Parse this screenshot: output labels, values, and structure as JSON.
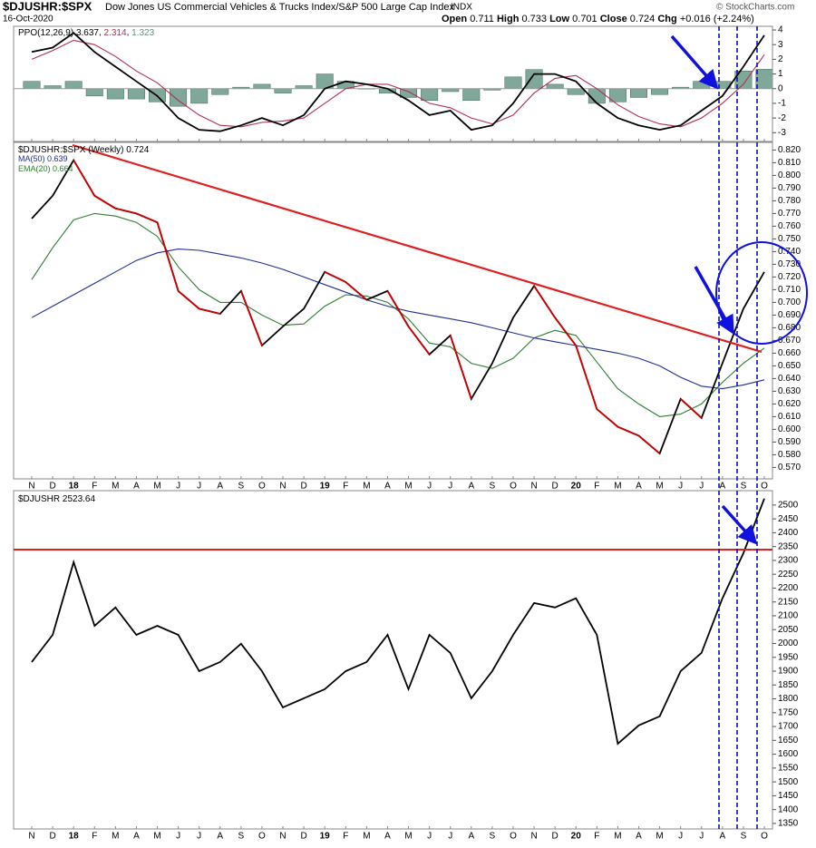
{
  "header": {
    "symbol": "$DJUSHR:$SPX",
    "description": "Dow Jones US Commercial Vehicles & Trucks Index/S&P 500 Large Cap Index",
    "exchange": "INDX",
    "date": "16-Oct-2020",
    "copyright": "© StockCharts.com",
    "open_label": "Open",
    "open": 0.711,
    "high_label": "High",
    "high": 0.733,
    "low_label": "Low",
    "low": 0.701,
    "close_label": "Close",
    "chg_label": "Chg",
    "chg": "+0.016 (+2.24%)"
  },
  "chart_data": [
    {
      "type": "line",
      "title": "PPO(12,26,9)",
      "series": [
        {
          "name": "PPO",
          "color": "#000000",
          "style": "line",
          "values": [
            2.5,
            2.8,
            3.8,
            2.5,
            1.5,
            0.5,
            -0.5,
            -2.0,
            -2.8,
            -2.9,
            -2.5,
            -2.0,
            -2.5,
            -1.8,
            0.0,
            0.5,
            0.3,
            0.0,
            -0.8,
            -1.8,
            -1.5,
            -2.8,
            -2.5,
            -1.0,
            1.0,
            1.0,
            0.5,
            -1.0,
            -2.0,
            -2.5,
            -2.8,
            -2.5,
            -1.5,
            -0.5,
            1.5,
            3.637
          ]
        },
        {
          "name": "Signal",
          "color": "#b03050",
          "style": "line",
          "values": [
            2.0,
            2.6,
            3.3,
            3.0,
            2.2,
            1.2,
            0.4,
            -0.8,
            -1.8,
            -2.5,
            -2.6,
            -2.3,
            -2.2,
            -2.0,
            -1.0,
            0.0,
            0.3,
            0.3,
            -0.2,
            -1.0,
            -1.3,
            -2.0,
            -2.4,
            -1.8,
            -0.3,
            0.7,
            0.9,
            0.0,
            -1.1,
            -1.9,
            -2.4,
            -2.6,
            -2.0,
            -1.0,
            0.3,
            2.314
          ]
        },
        {
          "name": "Histogram",
          "color": "#7fa89a",
          "style": "histogram",
          "values": [
            0.5,
            0.2,
            0.5,
            -0.5,
            -0.7,
            -0.7,
            -0.9,
            -1.2,
            -1.0,
            -0.4,
            0.1,
            0.3,
            -0.3,
            0.2,
            1.0,
            0.5,
            0,
            -0.3,
            -0.6,
            -0.8,
            -0.2,
            -0.8,
            -0.1,
            0.8,
            1.3,
            0.3,
            -0.4,
            -1.0,
            -0.9,
            -0.6,
            -0.4,
            0.1,
            0.5,
            0.5,
            1.2,
            1.323
          ]
        }
      ],
      "ylim": [
        -3.6,
        4.25
      ],
      "yticks": [
        -3,
        -2,
        -1,
        0,
        1,
        2,
        3,
        4
      ]
    },
    {
      "type": "line",
      "categories": [
        "N",
        "D",
        "18",
        "F",
        "M",
        "A",
        "M",
        "J",
        "J",
        "A",
        "S",
        "O",
        "N",
        "D",
        "19",
        "F",
        "M",
        "A",
        "M",
        "J",
        "J",
        "A",
        "S",
        "O",
        "N",
        "D",
        "20",
        "F",
        "M",
        "A",
        "M",
        "J",
        "J",
        "A",
        "S",
        "O"
      ],
      "series": [
        {
          "name": "$DJUSHR:$SPX (Weekly)",
          "color": "#000000",
          "down_color": "#d00000",
          "values": [
            0.766,
            0.784,
            0.812,
            0.784,
            0.774,
            0.77,
            0.763,
            0.709,
            0.695,
            0.691,
            0.709,
            0.666,
            0.681,
            0.695,
            0.724,
            0.716,
            0.702,
            0.709,
            0.681,
            0.659,
            0.674,
            0.624,
            0.652,
            0.688,
            0.713,
            0.688,
            0.666,
            0.616,
            0.602,
            0.595,
            0.581,
            0.624,
            0.609,
            0.652,
            0.695,
            0.724
          ]
        },
        {
          "name": "MA(50)",
          "color": "#1f2f8f",
          "values": [
            0.688,
            0.697,
            0.706,
            0.715,
            0.724,
            0.733,
            0.739,
            0.742,
            0.741,
            0.738,
            0.735,
            0.731,
            0.726,
            0.72,
            0.714,
            0.708,
            0.702,
            0.697,
            0.693,
            0.69,
            0.687,
            0.684,
            0.68,
            0.676,
            0.672,
            0.669,
            0.666,
            0.663,
            0.66,
            0.656,
            0.65,
            0.641,
            0.634,
            0.632,
            0.635,
            0.639
          ]
        },
        {
          "name": "EMA(20)",
          "color": "#2e7d32",
          "values": [
            0.718,
            0.743,
            0.765,
            0.77,
            0.768,
            0.763,
            0.752,
            0.728,
            0.71,
            0.7,
            0.7,
            0.69,
            0.682,
            0.683,
            0.697,
            0.706,
            0.705,
            0.7,
            0.687,
            0.668,
            0.665,
            0.652,
            0.648,
            0.656,
            0.672,
            0.678,
            0.674,
            0.653,
            0.632,
            0.62,
            0.61,
            0.612,
            0.62,
            0.637,
            0.652,
            0.664
          ]
        }
      ],
      "ylim": [
        0.561,
        0.826
      ],
      "yticks": [
        {
          "value": 0.57,
          "label": "0.570"
        },
        {
          "value": 0.58,
          "label": "0.580"
        },
        {
          "value": 0.59,
          "label": "0.590"
        },
        {
          "value": 0.6,
          "label": "0.600"
        },
        {
          "value": 0.61,
          "label": "0.610"
        },
        {
          "value": 0.62,
          "label": "0.620"
        },
        {
          "value": 0.63,
          "label": "0.630"
        },
        {
          "value": 0.64,
          "label": "0.640"
        },
        {
          "value": 0.65,
          "label": "0.650"
        },
        {
          "value": 0.66,
          "label": "0.660"
        },
        {
          "value": 0.67,
          "label": "0.670"
        },
        {
          "value": 0.68,
          "label": "0.680"
        },
        {
          "value": 0.69,
          "label": "0.690"
        },
        {
          "value": 0.7,
          "label": "0.700"
        },
        {
          "value": 0.71,
          "label": "0.710"
        },
        {
          "value": 0.72,
          "label": "0.720"
        },
        {
          "value": 0.73,
          "label": "0.730"
        },
        {
          "value": 0.74,
          "label": "0.740"
        },
        {
          "value": 0.75,
          "label": "0.750"
        },
        {
          "value": 0.76,
          "label": "0.760"
        },
        {
          "value": 0.77,
          "label": "0.770"
        },
        {
          "value": 0.78,
          "label": "0.780"
        },
        {
          "value": 0.79,
          "label": "0.790"
        },
        {
          "value": 0.8,
          "label": "0.800"
        },
        {
          "value": 0.81,
          "label": "0.810"
        },
        {
          "value": 0.82,
          "label": "0.820"
        }
      ]
    },
    {
      "type": "line",
      "categories": [
        "N",
        "D",
        "18",
        "F",
        "M",
        "A",
        "M",
        "J",
        "J",
        "A",
        "S",
        "O",
        "N",
        "D",
        "19",
        "F",
        "M",
        "A",
        "M",
        "J",
        "J",
        "A",
        "S",
        "O",
        "N",
        "D",
        "20",
        "F",
        "M",
        "A",
        "M",
        "J",
        "J",
        "A",
        "S",
        "O"
      ],
      "series": [
        {
          "name": "$DJUSHR",
          "color": "#000000",
          "values": [
            1933,
            2031,
            2294,
            2064,
            2130,
            2031,
            2064,
            2031,
            1900,
            1933,
            1999,
            1900,
            1769,
            1802,
            1835,
            1900,
            1933,
            2031,
            1835,
            2031,
            1966,
            1802,
            1900,
            2031,
            2146,
            2130,
            2163,
            2031,
            1638,
            1704,
            1737,
            1900,
            1966,
            2163,
            2326,
            2523.64
          ]
        }
      ],
      "ylim": [
        1330,
        2552
      ],
      "yticks": [
        1350,
        1400,
        1450,
        1500,
        1550,
        1600,
        1650,
        1700,
        1750,
        1800,
        1850,
        1900,
        1950,
        2000,
        2050,
        2100,
        2150,
        2200,
        2250,
        2300,
        2350,
        2400,
        2450,
        2500
      ]
    }
  ]
}
